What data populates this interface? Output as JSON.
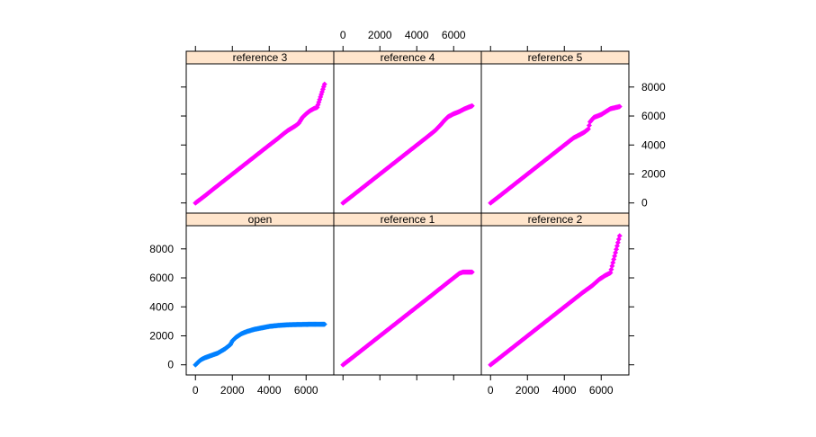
{
  "chart_data": {
    "type": "scatter",
    "layout": "lattice 3x2 quantile-quantile panels",
    "xlim": [
      -500,
      7500
    ],
    "ylim": [
      -700,
      9600
    ],
    "x_ticks": [
      0,
      2000,
      4000,
      6000
    ],
    "y_ticks": [
      0,
      2000,
      4000,
      6000,
      8000
    ],
    "colors": {
      "reference": "#ff00ff",
      "open": "#0080ff",
      "strip": "#ffe5cc",
      "frame": "#000000"
    },
    "panels": [
      {
        "title": "reference 3",
        "row": 0,
        "col": 0,
        "color": "#ff00ff",
        "points": [
          [
            0,
            0
          ],
          [
            500,
            480
          ],
          [
            1000,
            990
          ],
          [
            1500,
            1490
          ],
          [
            2000,
            1990
          ],
          [
            2500,
            2490
          ],
          [
            3000,
            2990
          ],
          [
            3500,
            3490
          ],
          [
            4000,
            3990
          ],
          [
            4500,
            4480
          ],
          [
            4800,
            4800
          ],
          [
            5000,
            4990
          ],
          [
            5200,
            5150
          ],
          [
            5400,
            5300
          ],
          [
            5600,
            5500
          ],
          [
            5800,
            5900
          ],
          [
            6000,
            6150
          ],
          [
            6200,
            6350
          ],
          [
            6400,
            6500
          ],
          [
            6600,
            6600
          ],
          [
            7000,
            8200
          ]
        ]
      },
      {
        "title": "reference 4",
        "row": 0,
        "col": 1,
        "color": "#ff00ff",
        "points": [
          [
            0,
            0
          ],
          [
            500,
            490
          ],
          [
            1000,
            990
          ],
          [
            1500,
            1490
          ],
          [
            2000,
            1990
          ],
          [
            2500,
            2490
          ],
          [
            3000,
            2990
          ],
          [
            3500,
            3490
          ],
          [
            4000,
            3990
          ],
          [
            4500,
            4490
          ],
          [
            5000,
            5000
          ],
          [
            5300,
            5400
          ],
          [
            5500,
            5700
          ],
          [
            5700,
            5950
          ],
          [
            6000,
            6150
          ],
          [
            6300,
            6300
          ],
          [
            6600,
            6500
          ],
          [
            7000,
            6700
          ]
        ]
      },
      {
        "title": "reference 5",
        "row": 0,
        "col": 2,
        "color": "#ff00ff",
        "points": [
          [
            0,
            0
          ],
          [
            500,
            490
          ],
          [
            1000,
            990
          ],
          [
            1500,
            1490
          ],
          [
            2000,
            1990
          ],
          [
            2500,
            2490
          ],
          [
            3000,
            2990
          ],
          [
            3500,
            3490
          ],
          [
            4000,
            3990
          ],
          [
            4500,
            4490
          ],
          [
            4900,
            4750
          ],
          [
            5100,
            4900
          ],
          [
            5300,
            5100
          ],
          [
            5400,
            5600
          ],
          [
            5600,
            5900
          ],
          [
            6000,
            6100
          ],
          [
            6500,
            6500
          ],
          [
            7000,
            6650
          ]
        ]
      },
      {
        "title": "open",
        "row": 1,
        "col": 0,
        "color": "#0080ff",
        "points": [
          [
            0,
            0
          ],
          [
            100,
            120
          ],
          [
            200,
            250
          ],
          [
            300,
            350
          ],
          [
            500,
            480
          ],
          [
            800,
            620
          ],
          [
            1200,
            800
          ],
          [
            1600,
            1100
          ],
          [
            1900,
            1400
          ],
          [
            2000,
            1650
          ],
          [
            2200,
            1900
          ],
          [
            2500,
            2150
          ],
          [
            2800,
            2300
          ],
          [
            3200,
            2450
          ],
          [
            3600,
            2550
          ],
          [
            4000,
            2650
          ],
          [
            4500,
            2720
          ],
          [
            5000,
            2760
          ],
          [
            5500,
            2780
          ],
          [
            6000,
            2790
          ],
          [
            6300,
            2800
          ],
          [
            7000,
            2800
          ]
        ]
      },
      {
        "title": "reference 1",
        "row": 1,
        "col": 1,
        "color": "#ff00ff",
        "points": [
          [
            0,
            0
          ],
          [
            500,
            490
          ],
          [
            1000,
            990
          ],
          [
            1500,
            1490
          ],
          [
            2000,
            1990
          ],
          [
            2500,
            2490
          ],
          [
            3000,
            2990
          ],
          [
            3500,
            3490
          ],
          [
            4000,
            3990
          ],
          [
            4500,
            4490
          ],
          [
            5000,
            4990
          ],
          [
            5500,
            5500
          ],
          [
            5800,
            5800
          ],
          [
            6000,
            6000
          ],
          [
            6300,
            6300
          ],
          [
            6500,
            6400
          ],
          [
            7000,
            6400
          ]
        ]
      },
      {
        "title": "reference 2",
        "row": 1,
        "col": 2,
        "color": "#ff00ff",
        "points": [
          [
            0,
            0
          ],
          [
            500,
            490
          ],
          [
            1000,
            990
          ],
          [
            1500,
            1490
          ],
          [
            2000,
            1990
          ],
          [
            2500,
            2490
          ],
          [
            3000,
            2990
          ],
          [
            3500,
            3490
          ],
          [
            4000,
            3990
          ],
          [
            4500,
            4490
          ],
          [
            5000,
            4990
          ],
          [
            5500,
            5450
          ],
          [
            5900,
            5900
          ],
          [
            6200,
            6150
          ],
          [
            6500,
            6350
          ],
          [
            7000,
            8900
          ]
        ]
      }
    ]
  }
}
